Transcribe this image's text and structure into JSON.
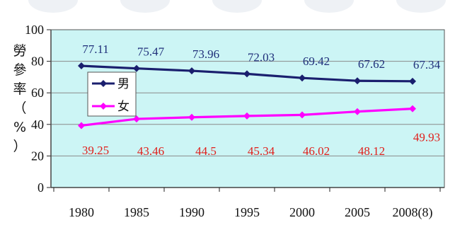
{
  "chart_data": {
    "type": "line",
    "categories": [
      "1980",
      "1985",
      "1990",
      "1995",
      "2000",
      "2005",
      "2008(8)"
    ],
    "series": [
      {
        "name": "男",
        "values": [
          77.11,
          75.47,
          73.96,
          72.03,
          69.42,
          67.62,
          67.34
        ],
        "labels": [
          "77.11",
          "75.47",
          "73.96",
          "72.03",
          "69.42",
          "67.62",
          "67.34"
        ],
        "color": "#1a1f6e"
      },
      {
        "name": "女",
        "values": [
          39.25,
          43.46,
          44.5,
          45.34,
          46.02,
          48.12,
          49.93
        ],
        "labels": [
          "39.25",
          "43.46",
          "44.5",
          "45.34",
          "46.02",
          "48.12",
          "49.93"
        ],
        "color": "#ff00ff"
      }
    ],
    "title": "",
    "ylabel_chars": [
      "勞",
      "參",
      "率",
      "（",
      "%",
      "）"
    ],
    "ylim": [
      0,
      100
    ],
    "yticks": [
      "0",
      "20",
      "40",
      "60",
      "80",
      "100"
    ],
    "grid": true,
    "legend": "upper-left",
    "plot_bg": "#ccf5f5",
    "male_label_color": "#1f2f7a",
    "female_label_color": "#e0201c"
  }
}
